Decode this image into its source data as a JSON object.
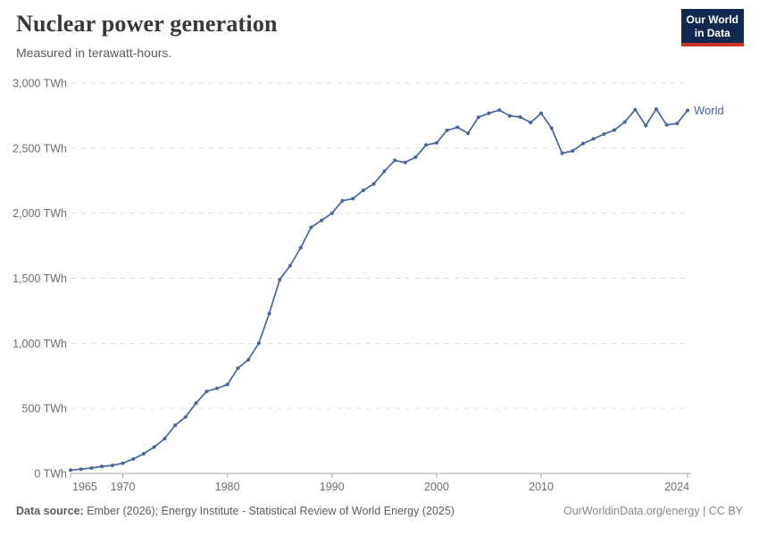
{
  "header": {
    "title": "Nuclear power generation",
    "subtitle": "Measured in terawatt-hours.",
    "logo": {
      "line1": "Our World",
      "line2": "in Data",
      "bg_color": "#12294f",
      "accent_color": "#cd3226"
    }
  },
  "footer": {
    "source_label": "Data source:",
    "source_text": "Ember (2026); Energy Institute - Statistical Review of World Energy (2025)",
    "credit": "OurWorldinData.org/energy | CC BY"
  },
  "chart_data": {
    "type": "line",
    "title": "Nuclear power generation",
    "subtitle": "Measured in terawatt-hours.",
    "unit": "TWh",
    "xlim": [
      1965,
      2024
    ],
    "ylim": [
      0,
      3000
    ],
    "grid": "horizontal-dashed",
    "legend_position": "end-of-line",
    "x_ticks": [
      1965,
      1970,
      1980,
      1990,
      2000,
      2010,
      2024
    ],
    "y_ticks": [
      {
        "value": 0,
        "label": "0 TWh"
      },
      {
        "value": 500,
        "label": "500 TWh"
      },
      {
        "value": 1000,
        "label": "1,000 TWh"
      },
      {
        "value": 1500,
        "label": "1,500 TWh"
      },
      {
        "value": 2000,
        "label": "2,000 TWh"
      },
      {
        "value": 2500,
        "label": "2,500 TWh"
      },
      {
        "value": 3000,
        "label": "3,000 TWh"
      }
    ],
    "colors": {
      "grid": "#dcdcdc",
      "axis": "#a5a5a5",
      "tick_text": "#6e6e6e"
    },
    "series": [
      {
        "name": "World",
        "color": "#47659e",
        "points": [
          [
            1965,
            26
          ],
          [
            1966,
            33
          ],
          [
            1967,
            42
          ],
          [
            1968,
            54
          ],
          [
            1969,
            62
          ],
          [
            1970,
            79
          ],
          [
            1971,
            111
          ],
          [
            1972,
            152
          ],
          [
            1973,
            203
          ],
          [
            1974,
            268
          ],
          [
            1975,
            370
          ],
          [
            1976,
            434
          ],
          [
            1977,
            540
          ],
          [
            1978,
            630
          ],
          [
            1979,
            654
          ],
          [
            1980,
            684
          ],
          [
            1981,
            809
          ],
          [
            1982,
            874
          ],
          [
            1983,
            1001
          ],
          [
            1984,
            1229
          ],
          [
            1985,
            1489
          ],
          [
            1986,
            1596
          ],
          [
            1987,
            1735
          ],
          [
            1988,
            1891
          ],
          [
            1989,
            1945
          ],
          [
            1990,
            2000
          ],
          [
            1991,
            2096
          ],
          [
            1992,
            2112
          ],
          [
            1993,
            2176
          ],
          [
            1994,
            2225
          ],
          [
            1995,
            2322
          ],
          [
            1996,
            2406
          ],
          [
            1997,
            2390
          ],
          [
            1998,
            2431
          ],
          [
            1999,
            2525
          ],
          [
            2000,
            2540
          ],
          [
            2001,
            2637
          ],
          [
            2002,
            2660
          ],
          [
            2003,
            2614
          ],
          [
            2004,
            2738
          ],
          [
            2005,
            2768
          ],
          [
            2006,
            2793
          ],
          [
            2007,
            2748
          ],
          [
            2008,
            2739
          ],
          [
            2009,
            2697
          ],
          [
            2010,
            2767
          ],
          [
            2011,
            2653
          ],
          [
            2012,
            2461
          ],
          [
            2013,
            2478
          ],
          [
            2014,
            2535
          ],
          [
            2015,
            2571
          ],
          [
            2016,
            2608
          ],
          [
            2017,
            2639
          ],
          [
            2018,
            2701
          ],
          [
            2019,
            2796
          ],
          [
            2020,
            2674
          ],
          [
            2021,
            2800
          ],
          [
            2022,
            2679
          ],
          [
            2023,
            2690
          ],
          [
            2024,
            2790
          ]
        ]
      }
    ]
  }
}
